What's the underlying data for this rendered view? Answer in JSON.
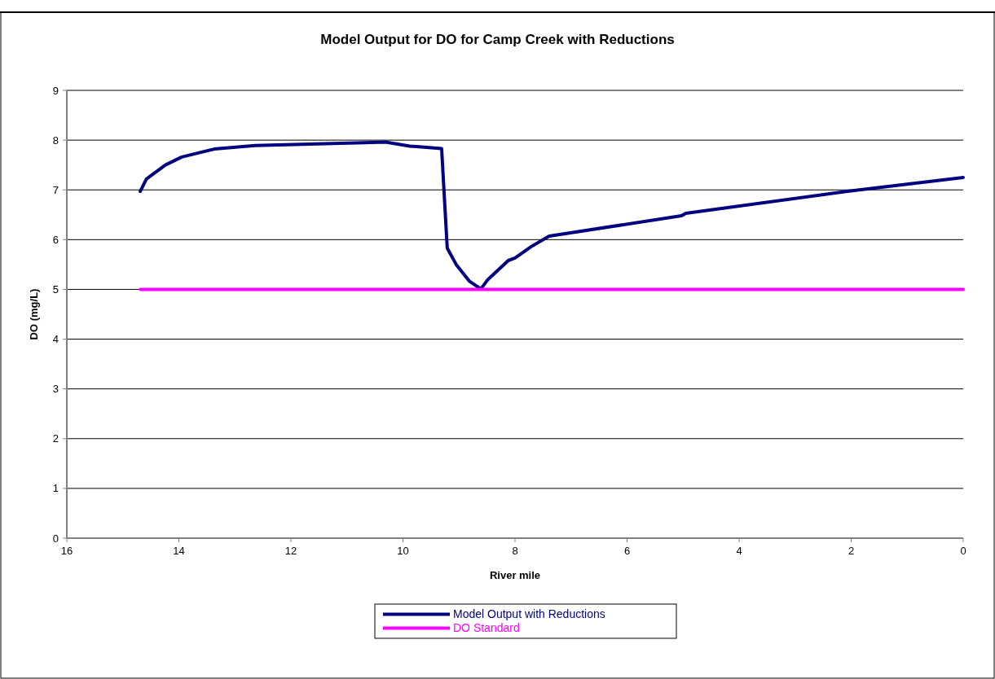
{
  "chart_data": {
    "type": "line",
    "title": "Model Output for DO for Camp Creek with Reductions",
    "xlabel": "River mile",
    "ylabel": "DO (mg/L)",
    "xlim": [
      16,
      0
    ],
    "xticks": [
      16,
      14,
      12,
      10,
      8,
      6,
      4,
      2,
      0
    ],
    "ylim": [
      0,
      9
    ],
    "yticks": [
      0,
      1,
      2,
      3,
      4,
      5,
      6,
      7,
      8,
      9
    ],
    "grid": "y",
    "legend": "bottom",
    "line_style": "solid",
    "marker": "none",
    "series": [
      {
        "name": "Model Output with Reductions",
        "color": "#000080",
        "x": [
          14.69,
          14.58,
          14.24,
          13.95,
          13.37,
          12.64,
          11.67,
          10.69,
          10.31,
          9.88,
          9.31,
          9.21,
          9.05,
          8.81,
          8.61,
          8.49,
          8.12,
          8.0,
          7.71,
          7.39,
          5.03,
          4.95,
          2.07,
          0
        ],
        "values": [
          6.97,
          7.22,
          7.5,
          7.66,
          7.82,
          7.89,
          7.92,
          7.95,
          7.96,
          7.88,
          7.83,
          5.83,
          5.5,
          5.16,
          5.01,
          5.19,
          5.58,
          5.63,
          5.86,
          6.07,
          6.48,
          6.53,
          6.97,
          7.25
        ]
      },
      {
        "name": "DO Standard",
        "color": "#ff00ff",
        "x": [
          14.69,
          0
        ],
        "values": [
          5,
          5
        ]
      }
    ]
  }
}
